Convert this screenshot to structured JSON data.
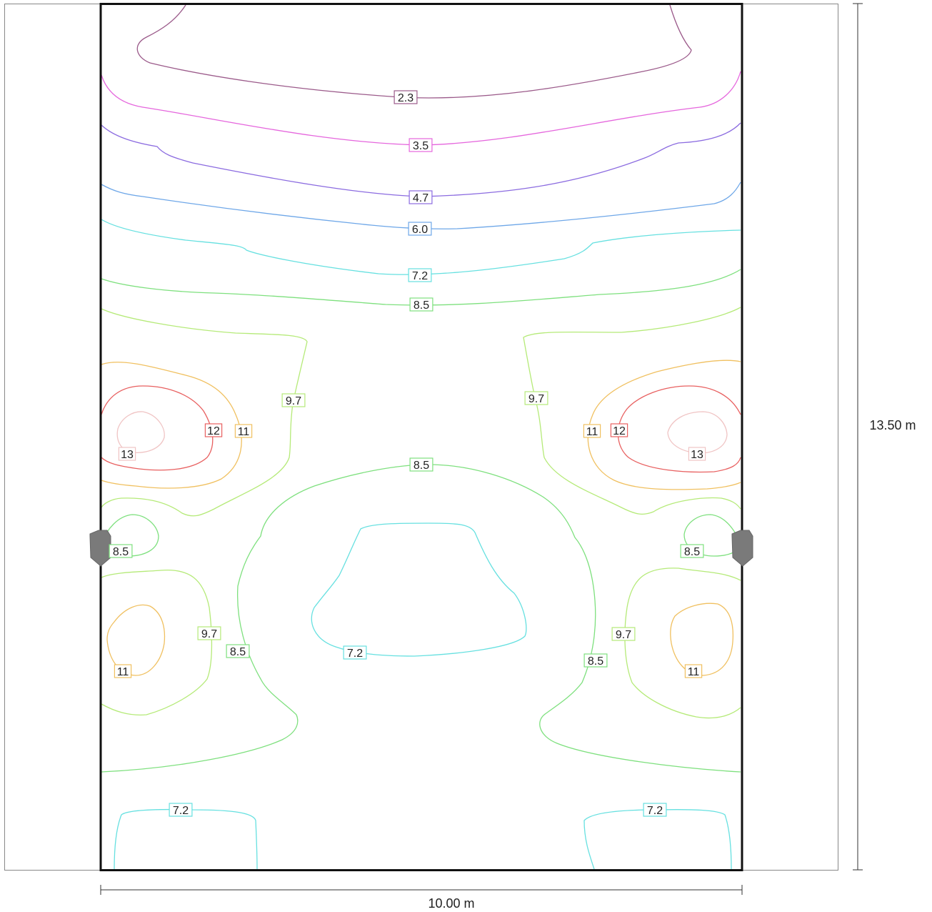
{
  "plan": {
    "width_label": "10.00 m",
    "height_label": "13.50 m"
  },
  "contours": [
    {
      "id": "c23",
      "label": "2.3",
      "color": "#9b5a8a"
    },
    {
      "id": "c35",
      "label": "3.5",
      "color": "#e566dd"
    },
    {
      "id": "c47",
      "label": "4.7",
      "color": "#8b6be0"
    },
    {
      "id": "c60",
      "label": "6.0",
      "color": "#6ea7e8"
    },
    {
      "id": "c72",
      "label": "7.2",
      "color": "#66e0e0"
    },
    {
      "id": "c85",
      "label": "8.5",
      "color": "#7ee07e"
    },
    {
      "id": "c97",
      "label": "9.7",
      "color": "#b5ea78"
    },
    {
      "id": "c11",
      "label": "11",
      "color": "#f0c060"
    },
    {
      "id": "c12",
      "label": "12",
      "color": "#e86060"
    },
    {
      "id": "c13",
      "label": "13",
      "color": "#f0c4c4"
    }
  ],
  "luminaires": [
    {
      "name": "luminaire-left-icon"
    },
    {
      "name": "luminaire-right-icon"
    }
  ]
}
